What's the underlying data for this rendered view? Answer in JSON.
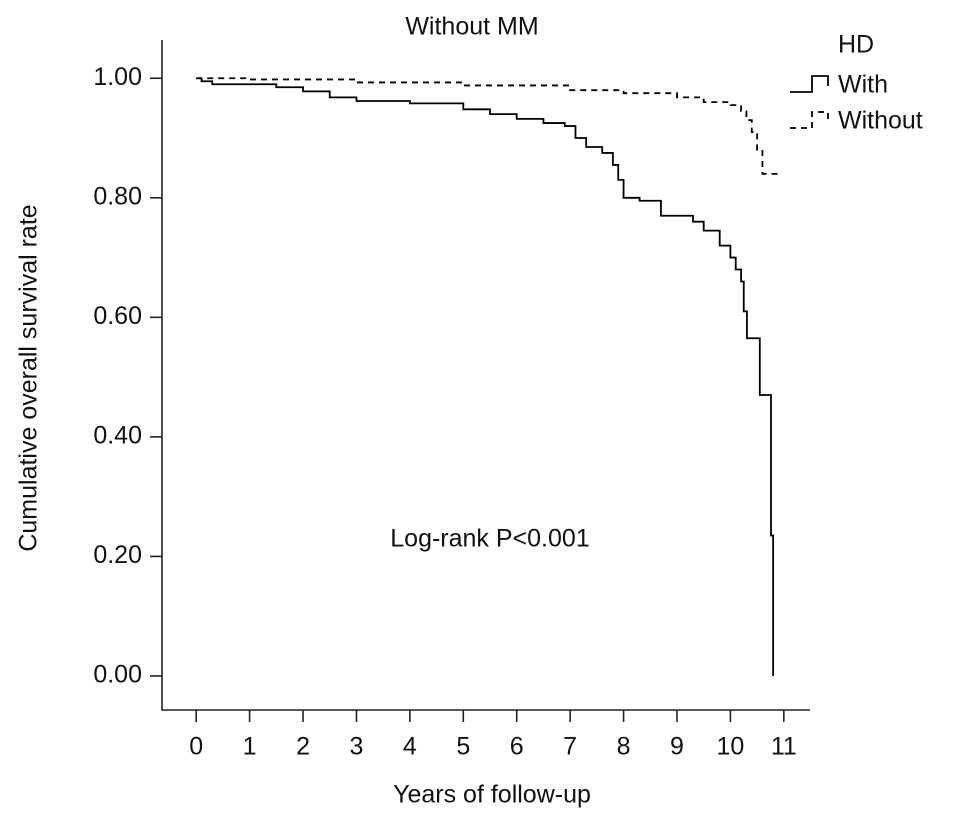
{
  "chart_data": {
    "type": "step",
    "title": "Without MM",
    "x_label": "Years of follow-up",
    "y_label": "Cumulative overall survival rate",
    "annotation": "Log-rank P<0.001",
    "legend_title": "HD",
    "legend_position": "top-right",
    "xlim": [
      -0.64,
      11.49
    ],
    "ylim": [
      -0.057,
      1.064
    ],
    "xticks": [
      0,
      1,
      2,
      3,
      4,
      5,
      6,
      7,
      8,
      9,
      10,
      11
    ],
    "yticks": [
      {
        "value": 0,
        "label": "0.00"
      },
      {
        "value": 0.2,
        "label": "0.20"
      },
      {
        "value": 0.4,
        "label": "0.40"
      },
      {
        "value": 0.6,
        "label": "0.60"
      },
      {
        "value": 0.8,
        "label": "0.80"
      },
      {
        "value": 1,
        "label": "1.00"
      }
    ],
    "series": [
      {
        "name": "With",
        "color": "#000000",
        "dashed": false,
        "x": [
          0,
          0.1,
          0.3,
          1,
          1.5,
          2,
          2.5,
          3,
          4,
          5,
          5.5,
          6,
          6.5,
          6.9,
          7.1,
          7.3,
          7.6,
          7.8,
          7.9,
          8.0,
          8.3,
          8.7,
          9.3,
          9.5,
          9.8,
          10.0,
          10.1,
          10.2,
          10.25,
          10.31,
          10.55,
          10.76,
          10.8
        ],
        "values": [
          1.0,
          0.995,
          0.99,
          0.99,
          0.985,
          0.978,
          0.968,
          0.962,
          0.958,
          0.948,
          0.94,
          0.932,
          0.925,
          0.92,
          0.9,
          0.885,
          0.875,
          0.855,
          0.83,
          0.8,
          0.795,
          0.77,
          0.76,
          0.745,
          0.72,
          0.7,
          0.68,
          0.66,
          0.61,
          0.565,
          0.47,
          0.235,
          0.0
        ]
      },
      {
        "name": "Without",
        "color": "#000000",
        "dashed": true,
        "x": [
          0,
          1,
          3,
          5,
          7,
          8,
          9,
          9.5,
          10,
          10.2,
          10.3,
          10.4,
          10.5,
          10.6,
          10.94
        ],
        "values": [
          1.0,
          0.998,
          0.993,
          0.988,
          0.98,
          0.975,
          0.968,
          0.96,
          0.955,
          0.945,
          0.93,
          0.91,
          0.88,
          0.84,
          0.84
        ]
      }
    ]
  }
}
